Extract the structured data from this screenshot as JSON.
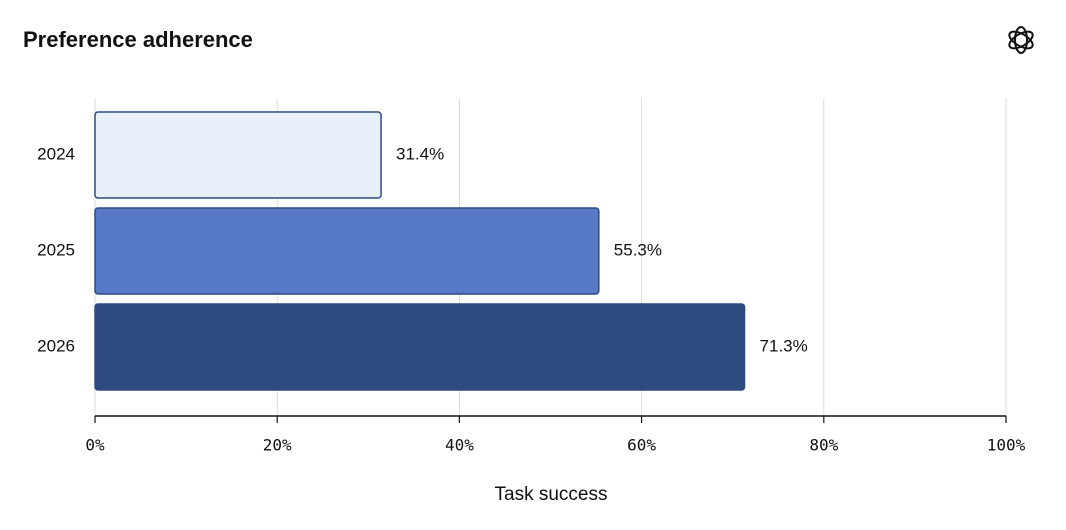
{
  "chart_data": {
    "type": "barh",
    "title": "Preference adherence",
    "categories": [
      "2024",
      "2025",
      "2026"
    ],
    "values": [
      31.4,
      55.3,
      71.3
    ],
    "value_labels": [
      "31.4%",
      "55.3%",
      "71.3%"
    ],
    "colors": [
      "#e8f0fc",
      "#5878c8",
      "#2e4a7f"
    ],
    "edge_color": "#2e4a7f",
    "xlabel": "Task success",
    "xlim": [
      0,
      100
    ],
    "xticks": [
      {
        "value": 0,
        "label": "0%"
      },
      {
        "value": 20,
        "label": "20%"
      },
      {
        "value": 40,
        "label": "40%"
      },
      {
        "value": 60,
        "label": "60%"
      },
      {
        "value": 80,
        "label": "80%"
      },
      {
        "value": 100,
        "label": "100%"
      }
    ],
    "grid": true
  }
}
